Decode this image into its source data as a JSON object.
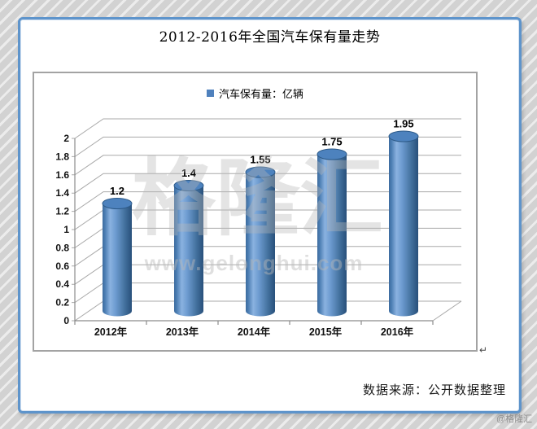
{
  "page": {
    "watermark_big": "格隆汇",
    "watermark_url": "www.gelonghui.com",
    "corner_watermark": "@格隆汇",
    "paragraph_mark": "↵"
  },
  "chart": {
    "title": "2012-2016年全国汽车保有量走势",
    "source_note": "数据来源：公开数据整理"
  },
  "chart_data": {
    "type": "bar",
    "style": "3d-cylinder",
    "title": "2012-2016年全国汽车保有量走势",
    "categories": [
      "2012年",
      "2013年",
      "2014年",
      "2015年",
      "2016年"
    ],
    "series": [
      {
        "name": "汽车保有量：亿辆",
        "values": [
          1.2,
          1.4,
          1.55,
          1.75,
          1.95
        ]
      }
    ],
    "value_labels": [
      "1.2",
      "1.4",
      "1.55",
      "1.75",
      "1.95"
    ],
    "y_ticks": [
      "0",
      "0.2",
      "0.4",
      "0.6",
      "0.8",
      "1",
      "1.2",
      "1.4",
      "1.6",
      "1.8",
      "2"
    ],
    "ylim": [
      0,
      2
    ],
    "xlabel": "",
    "ylabel": "",
    "grid": true,
    "legend_position": "top-center",
    "colors": {
      "bar": "#4f81bd",
      "bar_highlight": "#8ab2e0",
      "bar_shadow": "#28507b",
      "grid": "#a9a9a9",
      "axis": "#8c8c8c",
      "card_border": "#5e94cb"
    }
  }
}
